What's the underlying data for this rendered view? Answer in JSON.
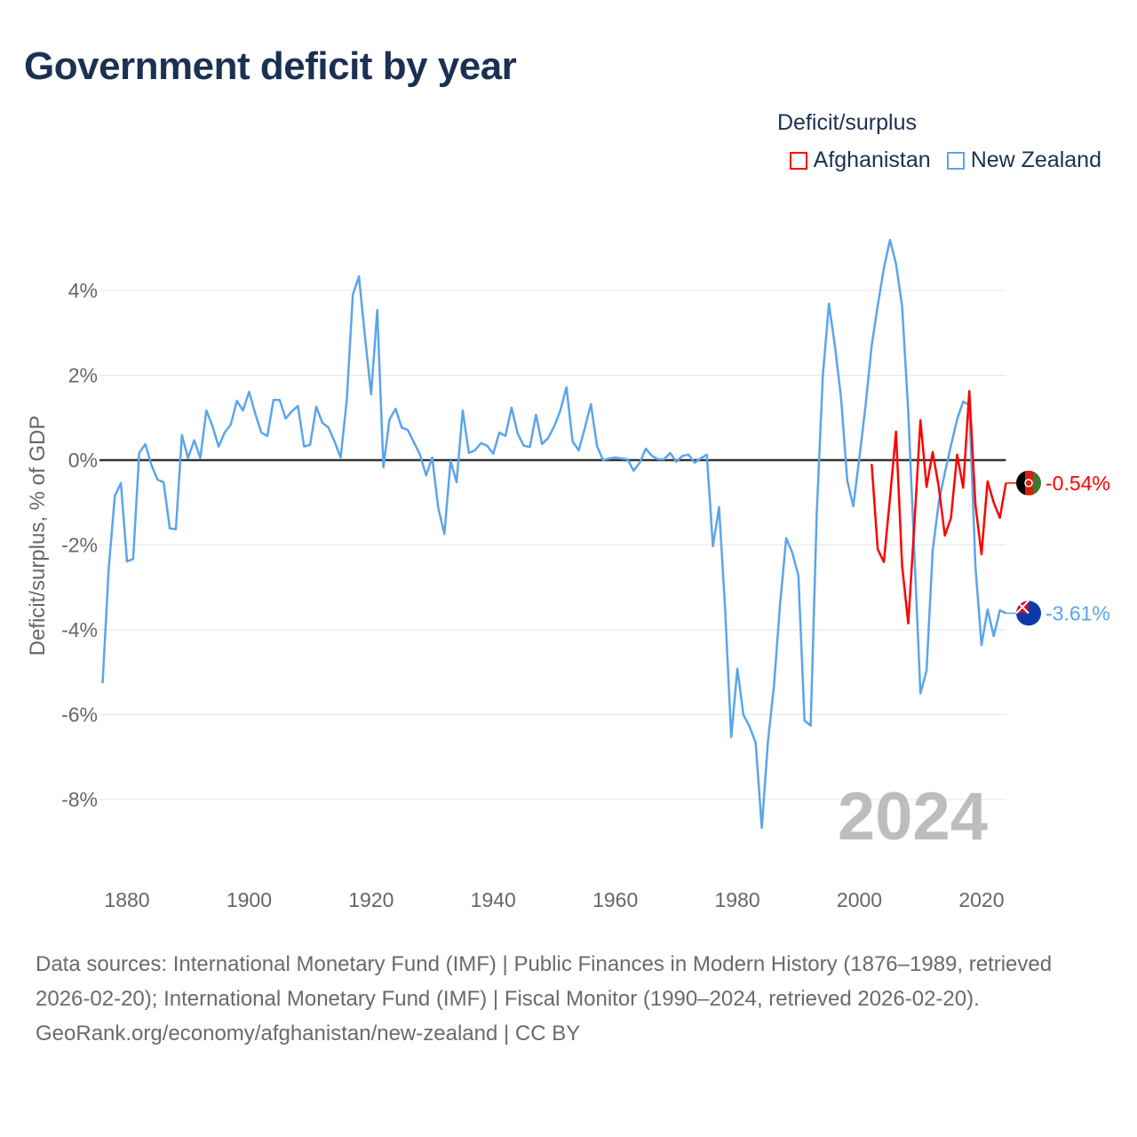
{
  "title": "Government deficit by year",
  "legend": {
    "title": "Deficit/surplus",
    "items": [
      {
        "label": "Afghanistan",
        "color": "#ff0000"
      },
      {
        "label": "New Zealand",
        "color": "#5aa5ec"
      }
    ]
  },
  "footer": {
    "sources": "Data sources: International Monetary Fund (IMF) | Public Finances in Modern History (1876–1989, retrieved 2026-02-20); International Monetary Fund (IMF) | Fiscal Monitor (1990–2024, retrieved 2026-02-20).",
    "credit": "GeoRank.org/economy/afghanistan/new-zealand | CC BY"
  },
  "chart_data": {
    "type": "line",
    "title": "Government deficit by year",
    "xlabel": "",
    "ylabel": "Deficit/surplus, % of GDP",
    "xlim": [
      1876,
      2024
    ],
    "ylim": [
      -9.8,
      5.6
    ],
    "x_ticks": [
      1880,
      1900,
      1920,
      1940,
      1960,
      1980,
      2000,
      2020
    ],
    "y_ticks": [
      4,
      2,
      0,
      -2,
      -4,
      -6,
      -8
    ],
    "y_tick_labels": [
      "4%",
      "2%",
      "0%",
      "-2%",
      "-4%",
      "-6%",
      "-8%"
    ],
    "current_year": "2024",
    "grid": true,
    "legend_position": "top-right",
    "series": [
      {
        "name": "New Zealand",
        "color": "#5aa5ec",
        "start_year": 1876,
        "end_label": "-3.61%",
        "values": [
          -5.26,
          -2.55,
          -0.84,
          -0.54,
          -2.39,
          -2.33,
          0.17,
          0.38,
          -0.12,
          -0.46,
          -0.52,
          -1.61,
          -1.63,
          0.59,
          0.05,
          0.47,
          0.05,
          1.17,
          0.8,
          0.32,
          0.65,
          0.84,
          1.4,
          1.17,
          1.61,
          1.1,
          0.65,
          0.57,
          1.42,
          1.42,
          0.98,
          1.15,
          1.28,
          0.32,
          0.36,
          1.26,
          0.88,
          0.77,
          0.44,
          0.06,
          1.42,
          3.9,
          4.33,
          2.89,
          1.55,
          3.54,
          -0.17,
          0.96,
          1.21,
          0.77,
          0.71,
          0.42,
          0.13,
          -0.36,
          0.06,
          -1.13,
          -1.74,
          -0.02,
          -0.52,
          1.17,
          0.17,
          0.23,
          0.4,
          0.34,
          0.15,
          0.65,
          0.57,
          1.24,
          0.63,
          0.34,
          0.31,
          1.07,
          0.38,
          0.52,
          0.8,
          1.17,
          1.72,
          0.44,
          0.23,
          0.75,
          1.32,
          0.33,
          0.0,
          0.04,
          0.06,
          0.04,
          0.02,
          -0.25,
          -0.06,
          0.27,
          0.1,
          0.02,
          0.02,
          0.17,
          -0.04,
          0.1,
          0.13,
          -0.06,
          0.04,
          0.13,
          -2.03,
          -1.11,
          -3.54,
          -6.53,
          -4.92,
          -6.01,
          -6.28,
          -6.66,
          -8.67,
          -6.64,
          -5.32,
          -3.39,
          -1.84,
          -2.18,
          -2.72,
          -6.14,
          -6.26,
          -1.3,
          1.99,
          3.69,
          2.68,
          1.45,
          -0.48,
          -1.09,
          0.06,
          1.28,
          2.7,
          3.64,
          4.52,
          5.19,
          4.63,
          3.62,
          1.13,
          -2.2,
          -5.5,
          -4.96,
          -2.13,
          -1.0,
          -0.3,
          0.35,
          0.96,
          1.38,
          1.3,
          -2.5,
          -4.36,
          -3.52,
          -4.15,
          -3.54,
          -3.61
        ]
      },
      {
        "name": "Afghanistan",
        "color": "#ff0000",
        "start_year": 2002,
        "end_label": "-0.54%",
        "values": [
          -0.09,
          -2.1,
          -2.4,
          -0.9,
          0.67,
          -2.5,
          -3.85,
          -1.5,
          0.94,
          -0.63,
          0.19,
          -0.63,
          -1.78,
          -1.36,
          0.13,
          -0.65,
          1.63,
          -1.05,
          -2.22,
          -0.5,
          -1.0,
          -1.36,
          -0.54
        ]
      }
    ]
  }
}
